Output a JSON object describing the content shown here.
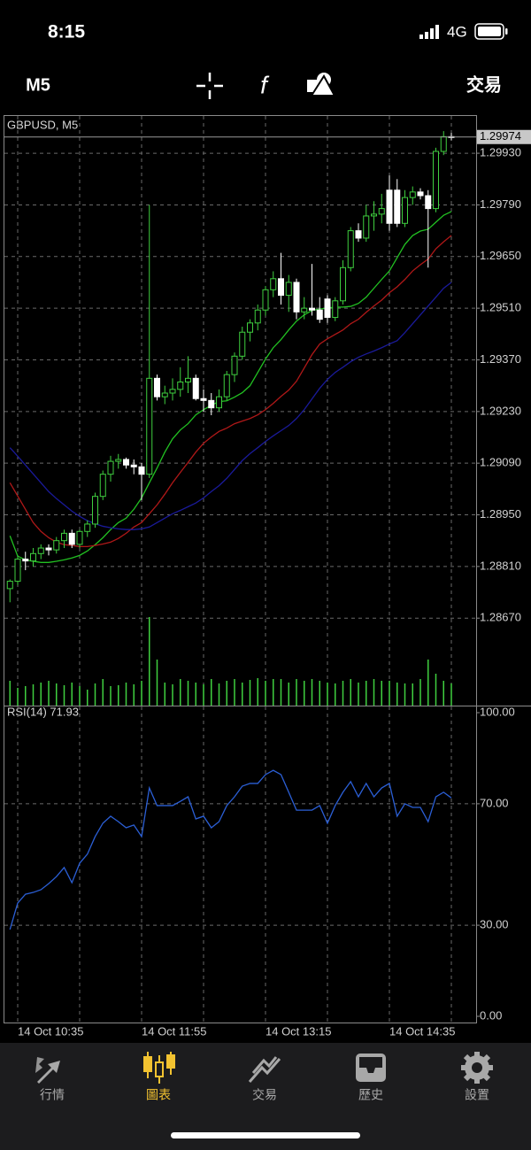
{
  "status_bar": {
    "time": "8:15",
    "network": "4G"
  },
  "toolbar": {
    "timeframe": "M5",
    "trade": "交易"
  },
  "tabs": {
    "items": [
      "行情",
      "圖表",
      "交易",
      "歷史",
      "設置"
    ],
    "active": 1,
    "active_color": "#f2c230",
    "color": "#a8a8a8"
  },
  "chart_data": [
    {
      "type": "candlestick",
      "title": "GBPUSD, M5",
      "categories": [
        null,
        "14 Oct 10:35",
        null,
        null,
        null,
        null,
        null,
        null,
        null,
        null,
        null,
        null,
        null,
        null,
        null,
        null,
        null,
        "14 Oct 11:55",
        null,
        null,
        null,
        null,
        null,
        null,
        null,
        null,
        null,
        null,
        null,
        null,
        null,
        null,
        null,
        "14 Oct 13:15",
        null,
        null,
        null,
        null,
        null,
        null,
        null,
        null,
        null,
        null,
        null,
        null,
        null,
        null,
        null,
        "14 Oct 14:35",
        null,
        null,
        null,
        null,
        null,
        null,
        null,
        null
      ],
      "open": [
        1.2875,
        1.2877,
        1.2883,
        1.28825,
        1.28845,
        1.2886,
        1.28855,
        1.2888,
        1.289,
        1.2887,
        1.28905,
        1.28925,
        1.29,
        1.2906,
        1.29095,
        1.291,
        1.29085,
        1.2908,
        1.2906,
        1.2932,
        1.2927,
        1.2928,
        1.2929,
        1.2931,
        1.2932,
        1.29265,
        1.2926,
        1.2924,
        1.2927,
        1.2933,
        1.2938,
        1.29445,
        1.2947,
        1.29505,
        1.2956,
        1.2959,
        1.29545,
        1.2958,
        1.295,
        1.2951,
        1.29505,
        1.29535,
        1.29485,
        1.2953,
        1.2962,
        1.2972,
        1.297,
        1.2976,
        1.29765,
        1.2983,
        1.2983,
        1.2974,
        1.2981,
        1.29825,
        1.29815,
        1.2978,
        1.29935,
        1.29975
      ],
      "high": [
        1.28775,
        1.2884,
        1.2885,
        1.2886,
        1.2887,
        1.2887,
        1.2889,
        1.2891,
        1.2891,
        1.2891,
        1.28935,
        1.2901,
        1.2907,
        1.2911,
        1.29115,
        1.29105,
        1.291,
        1.2909,
        1.2979,
        1.2933,
        1.293,
        1.2932,
        1.2935,
        1.2938,
        1.2933,
        1.2929,
        1.2928,
        1.2929,
        1.2934,
        1.2939,
        1.2946,
        1.2948,
        1.2952,
        1.2957,
        1.2961,
        1.2966,
        1.296,
        1.2959,
        1.2954,
        1.2963,
        1.2954,
        1.29545,
        1.2954,
        1.2964,
        1.2973,
        1.2974,
        1.2979,
        1.298,
        1.2982,
        1.2987,
        1.2986,
        1.2983,
        1.2984,
        1.29835,
        1.2983,
        1.29945,
        1.2999,
        1.29985
      ],
      "low": [
        1.28713,
        1.2876,
        1.288,
        1.2881,
        1.2883,
        1.2884,
        1.28845,
        1.2886,
        1.2886,
        1.2886,
        1.2889,
        1.28915,
        1.2899,
        1.2904,
        1.29075,
        1.29075,
        1.2906,
        1.2899,
        1.2905,
        1.2926,
        1.2925,
        1.2926,
        1.2927,
        1.2928,
        1.2926,
        1.2923,
        1.2922,
        1.2923,
        1.2926,
        1.2931,
        1.2937,
        1.2942,
        1.2945,
        1.2949,
        1.2954,
        1.2952,
        1.295,
        1.2948,
        1.2948,
        1.2949,
        1.2947,
        1.2947,
        1.29475,
        1.2952,
        1.2961,
        1.2969,
        1.2969,
        1.2972,
        1.2974,
        1.2972,
        1.2973,
        1.2973,
        1.2979,
        1.29805,
        1.2962,
        1.2977,
        1.29925,
        1.29965
      ],
      "close": [
        1.2877,
        1.2883,
        1.28825,
        1.28845,
        1.2886,
        1.28855,
        1.2888,
        1.289,
        1.2887,
        1.28905,
        1.28925,
        1.29,
        1.2906,
        1.29095,
        1.291,
        1.29085,
        1.2908,
        1.2906,
        1.2932,
        1.2927,
        1.2928,
        1.2929,
        1.2931,
        1.2932,
        1.29265,
        1.2926,
        1.2924,
        1.2927,
        1.2933,
        1.2938,
        1.29445,
        1.2947,
        1.29505,
        1.2956,
        1.2959,
        1.29545,
        1.2958,
        1.295,
        1.2951,
        1.29505,
        1.2948,
        1.29485,
        1.2953,
        1.2962,
        1.2972,
        1.297,
        1.2976,
        1.29765,
        1.2978,
        1.2974,
        1.2974,
        1.2981,
        1.29825,
        1.29815,
        1.2978,
        1.29935,
        1.29975,
        1.29974
      ],
      "volume": [
        280,
        200,
        220,
        240,
        260,
        280,
        250,
        230,
        260,
        220,
        180,
        250,
        300,
        220,
        230,
        260,
        240,
        280,
        1000,
        520,
        260,
        240,
        300,
        280,
        260,
        240,
        300,
        250,
        280,
        300,
        260,
        290,
        310,
        280,
        300,
        300,
        260,
        300,
        280,
        300,
        280,
        260,
        250,
        280,
        300,
        260,
        280,
        300,
        280,
        280,
        260,
        250,
        250,
        300,
        520,
        360,
        280,
        250
      ],
      "up_color": "#3fcf3f",
      "down_color": "#ffffff",
      "volume_color": "#3fcf3f",
      "series": [
        {
          "color": "#22c122",
          "values": [
            1.28893,
            1.28838,
            1.28828,
            1.28824,
            1.28821,
            1.28821,
            1.28824,
            1.28828,
            1.28833,
            1.2884,
            1.28852,
            1.28869,
            1.28888,
            1.2891,
            1.28929,
            1.28941,
            1.28965,
            1.28996,
            1.29037,
            1.29077,
            1.2912,
            1.29156,
            1.2918,
            1.29197,
            1.29221,
            1.29235,
            1.29247,
            1.29257,
            1.29259,
            1.29269,
            1.29281,
            1.293,
            1.29336,
            1.29372,
            1.29403,
            1.29425,
            1.29451,
            1.29475,
            1.29492,
            1.29504,
            1.29508,
            1.2951,
            1.29513,
            1.29513,
            1.29515,
            1.29523,
            1.2954,
            1.29564,
            1.29588,
            1.29611,
            1.29647,
            1.29683,
            1.29707,
            1.29719,
            1.29724,
            1.29743,
            1.29762,
            1.29772
          ]
        },
        {
          "color": "#b01818",
          "values": [
            1.29037,
            1.29001,
            1.28965,
            1.28929,
            1.28905,
            1.28888,
            1.28876,
            1.28869,
            1.28867,
            1.28864,
            1.28864,
            1.28867,
            1.28871,
            1.28876,
            1.28886,
            1.289,
            1.28917,
            1.28929,
            1.28953,
            1.28977,
            1.29006,
            1.29037,
            1.29065,
            1.29092,
            1.2912,
            1.29144,
            1.29161,
            1.29176,
            1.29185,
            1.29197,
            1.29204,
            1.29211,
            1.29221,
            1.29235,
            1.29252,
            1.29271,
            1.29288,
            1.29312,
            1.29348,
            1.29384,
            1.29413,
            1.29427,
            1.29439,
            1.29451,
            1.29468,
            1.2948,
            1.29499,
            1.29516,
            1.29532,
            1.29552,
            1.29568,
            1.29588,
            1.29611,
            1.29628,
            1.29643,
            1.29671,
            1.2969,
            1.29707
          ]
        },
        {
          "color": "#1a1a9a",
          "values": [
            1.29132,
            1.29109,
            1.29085,
            1.29061,
            1.29037,
            1.29013,
            1.28994,
            1.28977,
            1.2896,
            1.28946,
            1.28934,
            1.28926,
            1.28919,
            1.28915,
            1.28912,
            1.2891,
            1.2891,
            1.28912,
            1.28917,
            1.28929,
            1.28941,
            1.28953,
            1.28962,
            1.28972,
            1.28982,
            1.28996,
            1.29013,
            1.29029,
            1.29049,
            1.29073,
            1.29097,
            1.29116,
            1.29132,
            1.29149,
            1.29164,
            1.29178,
            1.29192,
            1.29211,
            1.29235,
            1.29264,
            1.29293,
            1.29317,
            1.29336,
            1.2935,
            1.29365,
            1.29377,
            1.29386,
            1.29394,
            1.29403,
            1.29413,
            1.29422,
            1.29444,
            1.29468,
            1.29492,
            1.29516,
            1.2954,
            1.29564,
            1.2958
          ]
        }
      ],
      "last_price": 1.29974,
      "ylim": [
        1.28433,
        1.30031
      ],
      "yticks": [
        {
          "value": 1.2993,
          "label": "1.29930"
        },
        {
          "value": 1.2979,
          "label": "1.29790"
        },
        {
          "value": 1.2965,
          "label": "1.29650"
        },
        {
          "value": 1.2951,
          "label": "1.29510"
        },
        {
          "value": 1.2937,
          "label": "1.29370"
        },
        {
          "value": 1.2923,
          "label": "1.29230"
        },
        {
          "value": 1.2909,
          "label": "1.29090"
        },
        {
          "value": 1.2895,
          "label": "1.28950"
        },
        {
          "value": 1.2881,
          "label": "1.28810"
        },
        {
          "value": 1.2867,
          "label": "1.28670"
        }
      ],
      "grid": true
    },
    {
      "type": "line",
      "title": "RSI(14) 71.93",
      "color": "#2b5fd6",
      "values": [
        28.6,
        37.3,
        40.2,
        40.8,
        41.7,
        43.7,
        46,
        49,
        44,
        50.4,
        53.4,
        59.2,
        63.6,
        65.9,
        64.1,
        62.1,
        63,
        59.2,
        75.2,
        69.4,
        69.4,
        69.4,
        70.8,
        72.3,
        65,
        65.9,
        62.1,
        64.1,
        69.4,
        72.3,
        75.8,
        76.7,
        76.7,
        79.6,
        81,
        79.6,
        73.8,
        67.9,
        67.9,
        67.9,
        69.4,
        63.6,
        69.4,
        73.8,
        77.3,
        72.3,
        76.7,
        72.3,
        75.2,
        76.7,
        65.9,
        70,
        68.8,
        68.8,
        64.1,
        72.3,
        73.8,
        71.93
      ],
      "ylim": [
        0,
        100
      ],
      "yticks": [
        {
          "value": 100,
          "label": "100.00"
        },
        {
          "value": 70,
          "label": "70.00"
        },
        {
          "value": 30,
          "label": "30.00"
        },
        {
          "value": 0,
          "label": "0.00"
        }
      ],
      "grid": true
    }
  ]
}
